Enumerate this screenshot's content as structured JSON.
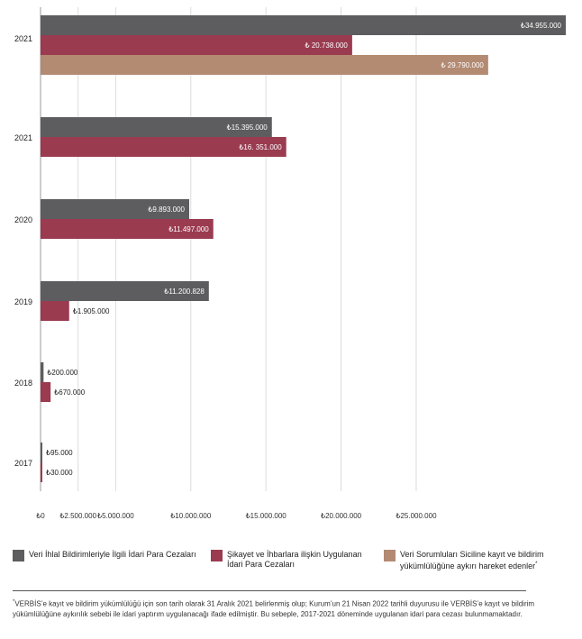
{
  "chart_data": {
    "type": "bar",
    "orientation": "horizontal",
    "title": "",
    "xlabel": "",
    "ylabel": "",
    "xlim": [
      0,
      35000000
    ],
    "grid": true,
    "x_ticks": [
      {
        "value": 0,
        "label": "₺0"
      },
      {
        "value": 2500000,
        "label": "₺2.500.000"
      },
      {
        "value": 5000000,
        "label": "₺5.000.000"
      },
      {
        "value": 10000000,
        "label": "₺10.000.000"
      },
      {
        "value": 15000000,
        "label": "₺15.000.000"
      },
      {
        "value": 20000000,
        "label": "₺20.000.000"
      },
      {
        "value": 25000000,
        "label": "₺25.000.000"
      }
    ],
    "groups": [
      {
        "label": "2021",
        "bars": [
          {
            "series": 0,
            "value": 34955000,
            "label": "₺34.955.000"
          },
          {
            "series": 1,
            "value": 20738000,
            "label": "₺ 20.738.000"
          },
          {
            "series": 2,
            "value": 29790000,
            "label": "₺ 29.790.000"
          }
        ]
      },
      {
        "label": "2021",
        "bars": [
          {
            "series": 0,
            "value": 15395000,
            "label": "₺15.395.000"
          },
          {
            "series": 1,
            "value": 16351000,
            "label": "₺16. 351.000"
          }
        ]
      },
      {
        "label": "2020",
        "bars": [
          {
            "series": 0,
            "value": 9893000,
            "label": "₺9.893.000"
          },
          {
            "series": 1,
            "value": 11497000,
            "label": "₺11.497.000"
          }
        ]
      },
      {
        "label": "2019",
        "bars": [
          {
            "series": 0,
            "value": 11200828,
            "label": "₺11.200.828"
          },
          {
            "series": 1,
            "value": 1905000,
            "label": "₺1.905.000"
          }
        ]
      },
      {
        "label": "2018",
        "bars": [
          {
            "series": 0,
            "value": 200000,
            "label": "₺200.000"
          },
          {
            "series": 1,
            "value": 670000,
            "label": "₺670.000"
          }
        ]
      },
      {
        "label": "2017",
        "bars": [
          {
            "series": 0,
            "value": 95000,
            "label": "₺95.000"
          },
          {
            "series": 1,
            "value": 30000,
            "label": "₺30.000"
          }
        ]
      }
    ],
    "series": [
      {
        "name": "Veri İhlal Bildirimleriyle İlgili İdari Para Cezaları",
        "color": "#5d5d5f"
      },
      {
        "name": "Şikayet ve İhbarlara ilişkin Uygulanan İdari Para Cezaları",
        "color": "#9a3b50"
      },
      {
        "name": "Veri Sorumluları Siciline kayıt ve bildirim yükümlülüğüne aykırı hareket edenler",
        "color": "#b38a72"
      }
    ],
    "legend_position": "bottom"
  },
  "legend": {
    "items": [
      {
        "lines": [
          "Veri İhlal Bildirimleriyle İlgili İdari Para Cezaları"
        ]
      },
      {
        "lines": [
          "Şikayet ve İhbarlara ilişkin Uygulanan",
          "İdari Para Cezaları"
        ]
      },
      {
        "lines": [
          "Veri Sorumluları Siciline kayıt ve bildirim",
          "yükümlülüğüne aykırı hareket edenler"
        ],
        "mark": "*"
      }
    ]
  },
  "footnote": {
    "mark": "*",
    "text": "VERBİS’e kayıt ve bildirim yükümlülüğü için son tarih olarak 31 Aralık 2021 belirlenmiş olup; Kurum’un 21 Nisan 2022 tarihli duyurusu ile VERBİS’e kayıt ve bildirim yükümlülüğüne aykırılık sebebi ile idari yaptırım uygulanacağı ifade edilmiştir. Bu sebeple, 2017-2021 döneminde uygulanan idari para cezası bulunmamaktadır."
  }
}
